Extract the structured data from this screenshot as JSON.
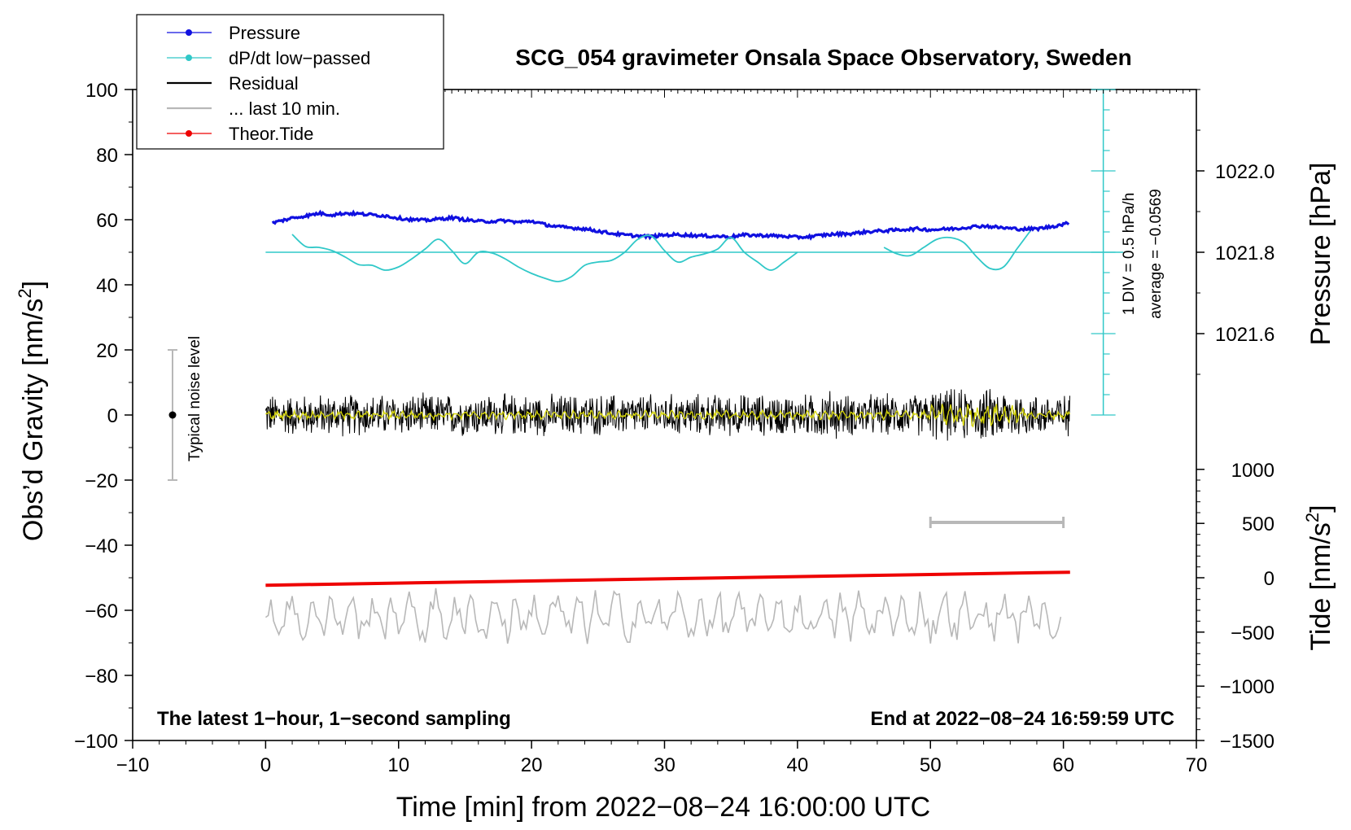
{
  "chart_data": {
    "type": "line",
    "title": "SCG_054 gravimeter Onsala Space Observatory, Sweden",
    "xlabel": "Time [min] from 2022−08−24 16:00:00 UTC",
    "ylabel": "Obs’d Gravity [nm/s",
    "ylabel_sup": "2",
    "ylabel_close": "]",
    "xlim": [
      -10,
      70
    ],
    "ylim": [
      -100,
      100
    ],
    "xticks": [
      -10,
      0,
      10,
      20,
      30,
      40,
      50,
      60,
      70
    ],
    "xtick_labels": [
      "−10",
      "0",
      "10",
      "20",
      "30",
      "40",
      "50",
      "60",
      "70"
    ],
    "yticks": [
      -100,
      -80,
      -60,
      -40,
      -20,
      0,
      20,
      40,
      60,
      80,
      100
    ],
    "ytick_labels": [
      "−100",
      "−80",
      "−60",
      "−40",
      "−20",
      "0",
      "20",
      "40",
      "60",
      "80",
      "100"
    ],
    "pressure_axis": {
      "label": "Pressure [hPa]",
      "ticks": [
        1022.0,
        1021.8,
        1021.6
      ],
      "tick_labels": [
        "1022.0",
        "1021.8",
        "1021.6"
      ],
      "gravity_equiv": [
        75,
        50,
        25
      ]
    },
    "tide_axis": {
      "label": "Tide [nm/s",
      "label_sup": "2",
      "label_close": "]",
      "ticks": [
        1000,
        500,
        0,
        -500,
        -1000,
        -1500
      ],
      "tick_labels": [
        "1000",
        "500",
        "0",
        "−500",
        "−1000",
        "−1500"
      ],
      "gravity_equiv": [
        -16.7,
        -33.3,
        -50,
        -66.7,
        -83.3,
        -100
      ]
    },
    "dpdt_scale": {
      "label": "1 DIV = 0.5 hPa/h",
      "average_label": "average = −0.0569",
      "x": 63,
      "y_range": [
        0,
        100
      ],
      "baseline": 50
    },
    "noise_bar": {
      "label": "Typical noise level",
      "x": -7,
      "y_range": [
        -20,
        20
      ]
    },
    "last10_marker": {
      "x_range": [
        50,
        60
      ],
      "y": -33
    },
    "annotation_left": "The latest 1−hour, 1−second sampling",
    "annotation_right": "End at 2022−08−24 16:59:59 UTC",
    "legend": [
      {
        "name": "Pressure",
        "color": "#1010e0",
        "style": "line-dot"
      },
      {
        "name": "dP/dt low−passed",
        "color": "#30c8c8",
        "style": "line-dot"
      },
      {
        "name": "Residual",
        "color": "#000000",
        "style": "line"
      },
      {
        "name": "... last 10 min.",
        "color": "#b8b8b8",
        "style": "line"
      },
      {
        "name": "Theor.Tide",
        "color": "#ee0000",
        "style": "line-dot"
      }
    ],
    "series": [
      {
        "name": "Pressure",
        "color": "#1010e0",
        "x": [
          0.5,
          2,
          3.5,
          4,
          5,
          6,
          7,
          8,
          9,
          10,
          11,
          12,
          13,
          14,
          15,
          16,
          17,
          18,
          19,
          20,
          21,
          22,
          23,
          24,
          25,
          26,
          27,
          28,
          29,
          30,
          31,
          32,
          33,
          34,
          35,
          36,
          37,
          38,
          39,
          40,
          41,
          42,
          43,
          44,
          45,
          46,
          47,
          48,
          49,
          50,
          51,
          52,
          53,
          54,
          55,
          56,
          57,
          58,
          59,
          60,
          60.5
        ],
        "y": [
          59,
          60.5,
          61.5,
          62,
          61.5,
          62,
          61.8,
          61.5,
          61.2,
          60.5,
          60,
          59.8,
          60.2,
          60.6,
          60,
          59.5,
          59.5,
          59.7,
          59.2,
          59.6,
          58.5,
          57.8,
          57.5,
          57.2,
          56.5,
          55.8,
          55.3,
          55,
          54.8,
          55.3,
          55.4,
          55.2,
          55,
          54.9,
          54.8,
          55.3,
          55.2,
          55.1,
          54.9,
          54.6,
          54.8,
          55.3,
          55.6,
          55.7,
          56.2,
          56.5,
          56.7,
          57,
          57.2,
          56.9,
          57.1,
          57.3,
          57.8,
          58.1,
          57.7,
          57.3,
          57.1,
          57.2,
          57.8,
          58.6,
          59
        ]
      },
      {
        "name": "dP/dt low−passed (segment 1)",
        "color": "#30c8c8",
        "x": [
          2,
          3,
          4,
          5,
          6,
          7,
          8,
          9,
          10,
          11,
          12,
          13,
          14,
          15,
          16,
          17,
          18,
          19,
          20,
          21,
          22,
          23,
          24,
          25,
          26,
          27,
          28,
          29,
          30,
          31,
          32,
          33,
          34,
          35,
          36,
          37,
          38,
          39,
          40
        ],
        "y": [
          55.5,
          51.8,
          51.5,
          50.5,
          48.5,
          46.2,
          46,
          44.5,
          45.5,
          48,
          51,
          54,
          50.5,
          46.5,
          50,
          49.8,
          48,
          45.5,
          43.5,
          42,
          41,
          42.5,
          46,
          47,
          47.5,
          50,
          54,
          55,
          50.5,
          47,
          48.5,
          49.5,
          51,
          54.5,
          50,
          47,
          44.5,
          47,
          50
        ]
      },
      {
        "name": "dP/dt low−passed (segment 2)",
        "color": "#30c8c8",
        "x": [
          46.5,
          47.5,
          48.5,
          49.5,
          50.5,
          51.5,
          52.5,
          53.5,
          54.5,
          55.5,
          56.5,
          57.5
        ],
        "y": [
          51.5,
          49.5,
          49,
          51.5,
          54,
          54.5,
          53,
          48.5,
          45,
          45.5,
          51,
          56.5
        ]
      },
      {
        "name": "Residual",
        "color": "#000000",
        "x": [
          0,
          60.5
        ],
        "y": [
          0,
          0
        ],
        "amplitude_range": [
          -9,
          9
        ]
      },
      {
        "name": "Residual low−passed",
        "color": "#d7d70a",
        "x": [
          0,
          60.5
        ],
        "y": [
          0,
          0
        ],
        "amplitude_range": [
          -5,
          5
        ]
      },
      {
        "name": "Theor.Tide",
        "color": "#ee0000",
        "x": [
          0,
          60.5
        ],
        "y": [
          -52.3,
          -48.3
        ]
      },
      {
        "name": "... last 10 min.",
        "color": "#b8b8b8",
        "x": [
          0,
          60
        ],
        "y": [
          -62,
          -62
        ],
        "amplitude_range": [
          -71,
          -53
        ]
      }
    ]
  }
}
